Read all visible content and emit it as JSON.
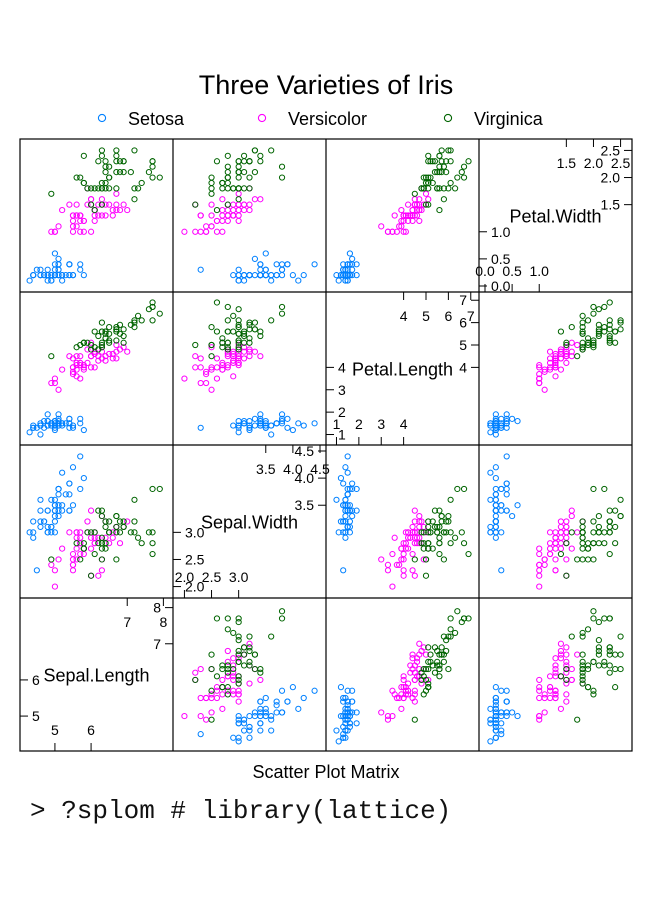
{
  "chart_data": {
    "type": "scatter",
    "subtype": "scatterplot-matrix",
    "title": "Three Varieties of Iris",
    "xlabel": "Scatter Plot Matrix",
    "legend": {
      "placement": "top",
      "entries": [
        {
          "name": "Setosa",
          "color": "#0080ff"
        },
        {
          "name": "Versicolor",
          "color": "#ff00ff"
        },
        {
          "name": "Virginica",
          "color": "#006400"
        }
      ]
    },
    "variables": [
      {
        "name": "Sepal.Length",
        "range": [
          4.2,
          8.1
        ],
        "ticks_low": [
          5,
          6
        ],
        "ticks_high": [
          7,
          8
        ]
      },
      {
        "name": "Sepal.Width",
        "range": [
          1.9,
          4.5
        ],
        "ticks_low": [
          2.0,
          2.5,
          3.0
        ],
        "ticks_high": [
          3.5,
          4.0,
          4.5
        ],
        "tick_labels_low": [
          "2.0",
          "2.5",
          "3.0"
        ],
        "tick_labels_high": [
          "3.5",
          "4.0",
          "4.5"
        ]
      },
      {
        "name": "Petal.Length",
        "range": [
          0.8,
          7.1
        ],
        "ticks_low": [
          1,
          2,
          3,
          4
        ],
        "ticks_high": [
          4,
          5,
          6,
          7
        ]
      },
      {
        "name": "Petal.Width",
        "range": [
          0.0,
          2.6
        ],
        "ticks_low": [
          0.0,
          0.5,
          1.0
        ],
        "ticks_high": [
          1.5,
          2.0,
          2.5
        ],
        "tick_labels_low": [
          "0.0",
          "0.5",
          "1.0"
        ],
        "tick_labels_high": [
          "1.5",
          "2.0",
          "2.5"
        ]
      }
    ],
    "series": [
      {
        "name": "Setosa",
        "points": [
          [
            5.1,
            3.5,
            1.4,
            0.2
          ],
          [
            4.9,
            3.0,
            1.4,
            0.2
          ],
          [
            4.7,
            3.2,
            1.3,
            0.2
          ],
          [
            4.6,
            3.1,
            1.5,
            0.2
          ],
          [
            5.0,
            3.6,
            1.4,
            0.2
          ],
          [
            5.4,
            3.9,
            1.7,
            0.4
          ],
          [
            4.6,
            3.4,
            1.4,
            0.3
          ],
          [
            5.0,
            3.4,
            1.5,
            0.2
          ],
          [
            4.4,
            2.9,
            1.4,
            0.2
          ],
          [
            4.9,
            3.1,
            1.5,
            0.1
          ],
          [
            5.4,
            3.7,
            1.5,
            0.2
          ],
          [
            4.8,
            3.4,
            1.6,
            0.2
          ],
          [
            4.8,
            3.0,
            1.4,
            0.1
          ],
          [
            4.3,
            3.0,
            1.1,
            0.1
          ],
          [
            5.8,
            4.0,
            1.2,
            0.2
          ],
          [
            5.7,
            4.4,
            1.5,
            0.4
          ],
          [
            5.4,
            3.9,
            1.3,
            0.4
          ],
          [
            5.1,
            3.5,
            1.4,
            0.3
          ],
          [
            5.7,
            3.8,
            1.7,
            0.3
          ],
          [
            5.1,
            3.8,
            1.5,
            0.3
          ],
          [
            5.4,
            3.4,
            1.7,
            0.2
          ],
          [
            5.1,
            3.7,
            1.5,
            0.4
          ],
          [
            4.6,
            3.6,
            1.0,
            0.2
          ],
          [
            5.1,
            3.3,
            1.7,
            0.5
          ],
          [
            4.8,
            3.4,
            1.9,
            0.2
          ],
          [
            5.0,
            3.0,
            1.6,
            0.2
          ],
          [
            5.0,
            3.4,
            1.6,
            0.4
          ],
          [
            5.2,
            3.5,
            1.5,
            0.2
          ],
          [
            5.2,
            3.4,
            1.4,
            0.2
          ],
          [
            4.7,
            3.2,
            1.6,
            0.2
          ],
          [
            4.8,
            3.1,
            1.6,
            0.2
          ],
          [
            5.4,
            3.4,
            1.5,
            0.4
          ],
          [
            5.2,
            4.1,
            1.5,
            0.1
          ],
          [
            5.5,
            4.2,
            1.4,
            0.2
          ],
          [
            4.9,
            3.1,
            1.5,
            0.2
          ],
          [
            5.0,
            3.2,
            1.2,
            0.2
          ],
          [
            5.5,
            3.5,
            1.3,
            0.2
          ],
          [
            4.9,
            3.6,
            1.4,
            0.1
          ],
          [
            4.4,
            3.0,
            1.3,
            0.2
          ],
          [
            5.1,
            3.4,
            1.5,
            0.2
          ],
          [
            5.0,
            3.5,
            1.3,
            0.3
          ],
          [
            4.5,
            2.3,
            1.3,
            0.3
          ],
          [
            4.4,
            3.2,
            1.3,
            0.2
          ],
          [
            5.0,
            3.5,
            1.6,
            0.6
          ],
          [
            5.1,
            3.8,
            1.9,
            0.4
          ],
          [
            4.8,
            3.0,
            1.4,
            0.3
          ],
          [
            5.1,
            3.8,
            1.6,
            0.2
          ],
          [
            4.6,
            3.2,
            1.4,
            0.2
          ],
          [
            5.3,
            3.7,
            1.5,
            0.2
          ],
          [
            5.0,
            3.3,
            1.4,
            0.2
          ]
        ]
      },
      {
        "name": "Versicolor",
        "points": [
          [
            7.0,
            3.2,
            4.7,
            1.4
          ],
          [
            6.4,
            3.2,
            4.5,
            1.5
          ],
          [
            6.9,
            3.1,
            4.9,
            1.5
          ],
          [
            5.5,
            2.3,
            4.0,
            1.3
          ],
          [
            6.5,
            2.8,
            4.6,
            1.5
          ],
          [
            5.7,
            2.8,
            4.5,
            1.3
          ],
          [
            6.3,
            3.3,
            4.7,
            1.6
          ],
          [
            4.9,
            2.4,
            3.3,
            1.0
          ],
          [
            6.6,
            2.9,
            4.6,
            1.3
          ],
          [
            5.2,
            2.7,
            3.9,
            1.4
          ],
          [
            5.0,
            2.0,
            3.5,
            1.0
          ],
          [
            5.9,
            3.0,
            4.2,
            1.5
          ],
          [
            6.0,
            2.2,
            4.0,
            1.0
          ],
          [
            6.1,
            2.9,
            4.7,
            1.4
          ],
          [
            5.6,
            2.9,
            3.6,
            1.3
          ],
          [
            6.7,
            3.1,
            4.4,
            1.4
          ],
          [
            5.6,
            3.0,
            4.5,
            1.5
          ],
          [
            5.8,
            2.7,
            4.1,
            1.0
          ],
          [
            6.2,
            2.2,
            4.5,
            1.5
          ],
          [
            5.6,
            2.5,
            3.9,
            1.1
          ],
          [
            5.9,
            3.2,
            4.8,
            1.8
          ],
          [
            6.1,
            2.8,
            4.0,
            1.3
          ],
          [
            6.3,
            2.5,
            4.9,
            1.5
          ],
          [
            6.1,
            2.8,
            4.7,
            1.2
          ],
          [
            6.4,
            2.9,
            4.3,
            1.3
          ],
          [
            6.6,
            3.0,
            4.4,
            1.4
          ],
          [
            6.8,
            2.8,
            4.8,
            1.4
          ],
          [
            6.7,
            3.0,
            5.0,
            1.7
          ],
          [
            6.0,
            2.9,
            4.5,
            1.5
          ],
          [
            5.7,
            2.6,
            3.5,
            1.0
          ],
          [
            5.5,
            2.4,
            3.8,
            1.1
          ],
          [
            5.5,
            2.4,
            3.7,
            1.0
          ],
          [
            5.8,
            2.7,
            3.9,
            1.2
          ],
          [
            6.0,
            2.7,
            5.1,
            1.6
          ],
          [
            5.4,
            3.0,
            4.5,
            1.5
          ],
          [
            6.0,
            3.4,
            4.5,
            1.6
          ],
          [
            6.7,
            3.1,
            4.7,
            1.5
          ],
          [
            6.3,
            2.3,
            4.4,
            1.3
          ],
          [
            5.6,
            3.0,
            4.1,
            1.3
          ],
          [
            5.5,
            2.5,
            4.0,
            1.3
          ],
          [
            5.5,
            2.6,
            4.4,
            1.2
          ],
          [
            6.1,
            3.0,
            4.6,
            1.4
          ],
          [
            5.8,
            2.6,
            4.0,
            1.2
          ],
          [
            5.0,
            2.3,
            3.3,
            1.0
          ],
          [
            5.6,
            2.7,
            4.2,
            1.3
          ],
          [
            5.7,
            3.0,
            4.2,
            1.2
          ],
          [
            5.7,
            2.9,
            4.2,
            1.3
          ],
          [
            6.2,
            2.9,
            4.3,
            1.3
          ],
          [
            5.1,
            2.5,
            3.0,
            1.1
          ],
          [
            5.7,
            2.8,
            4.1,
            1.3
          ]
        ]
      },
      {
        "name": "Virginica",
        "points": [
          [
            6.3,
            3.3,
            6.0,
            2.5
          ],
          [
            5.8,
            2.7,
            5.1,
            1.9
          ],
          [
            7.1,
            3.0,
            5.9,
            2.1
          ],
          [
            6.3,
            2.9,
            5.6,
            1.8
          ],
          [
            6.5,
            3.0,
            5.8,
            2.2
          ],
          [
            7.6,
            3.0,
            6.6,
            2.1
          ],
          [
            4.9,
            2.5,
            4.5,
            1.7
          ],
          [
            7.3,
            2.9,
            6.3,
            1.8
          ],
          [
            6.7,
            2.5,
            5.8,
            1.8
          ],
          [
            7.2,
            3.6,
            6.1,
            2.5
          ],
          [
            6.5,
            3.2,
            5.1,
            2.0
          ],
          [
            6.4,
            2.7,
            5.3,
            1.9
          ],
          [
            6.8,
            3.0,
            5.5,
            2.1
          ],
          [
            5.7,
            2.5,
            5.0,
            2.0
          ],
          [
            5.8,
            2.8,
            5.1,
            2.4
          ],
          [
            6.4,
            3.2,
            5.3,
            2.3
          ],
          [
            6.5,
            3.0,
            5.5,
            1.8
          ],
          [
            7.7,
            3.8,
            6.7,
            2.2
          ],
          [
            7.7,
            2.6,
            6.9,
            2.3
          ],
          [
            6.0,
            2.2,
            5.0,
            1.5
          ],
          [
            6.9,
            3.2,
            5.7,
            2.3
          ],
          [
            5.6,
            2.8,
            4.9,
            2.0
          ],
          [
            7.7,
            2.8,
            6.7,
            2.0
          ],
          [
            6.3,
            2.7,
            4.9,
            1.8
          ],
          [
            6.7,
            3.3,
            5.7,
            2.1
          ],
          [
            7.2,
            3.2,
            6.0,
            1.8
          ],
          [
            6.2,
            2.8,
            4.8,
            1.8
          ],
          [
            6.1,
            3.0,
            4.9,
            1.8
          ],
          [
            6.4,
            2.8,
            5.6,
            2.1
          ],
          [
            7.2,
            3.0,
            5.8,
            1.6
          ],
          [
            7.4,
            2.8,
            6.1,
            1.9
          ],
          [
            7.9,
            3.8,
            6.4,
            2.0
          ],
          [
            6.4,
            2.8,
            5.6,
            2.2
          ],
          [
            6.3,
            2.8,
            5.1,
            1.5
          ],
          [
            6.1,
            2.6,
            5.6,
            1.4
          ],
          [
            7.7,
            3.0,
            6.1,
            2.3
          ],
          [
            6.3,
            3.4,
            5.6,
            2.4
          ],
          [
            6.4,
            3.1,
            5.5,
            1.8
          ],
          [
            6.0,
            3.0,
            4.8,
            1.8
          ],
          [
            6.9,
            3.1,
            5.4,
            2.1
          ],
          [
            6.7,
            3.1,
            5.6,
            2.4
          ],
          [
            6.9,
            3.1,
            5.1,
            2.3
          ],
          [
            5.8,
            2.7,
            5.1,
            1.9
          ],
          [
            6.8,
            3.2,
            5.9,
            2.3
          ],
          [
            6.7,
            3.3,
            5.7,
            2.5
          ],
          [
            6.7,
            3.0,
            5.2,
            2.3
          ],
          [
            6.3,
            2.5,
            5.0,
            1.9
          ],
          [
            6.5,
            3.0,
            5.2,
            2.0
          ],
          [
            6.2,
            3.4,
            5.4,
            2.3
          ],
          [
            5.9,
            3.0,
            5.1,
            1.8
          ]
        ]
      }
    ],
    "grid": false
  },
  "console": {
    "command": "> ?splom # library(lattice)"
  }
}
